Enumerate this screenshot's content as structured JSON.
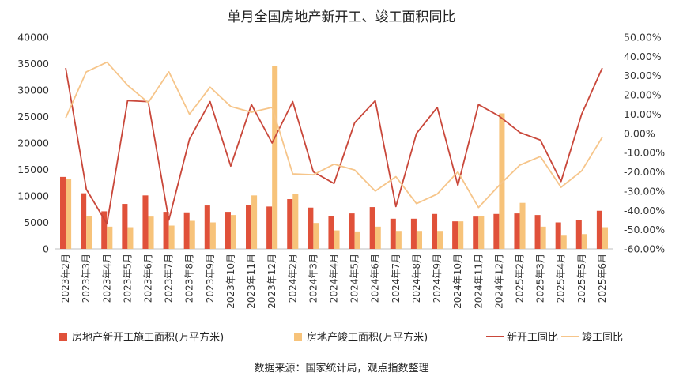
{
  "chart_data": {
    "type": "bar+line",
    "title": "单月全国房地产新开工、竣工面积同比",
    "categories": [
      "2023年2月",
      "2023年3月",
      "2023年4月",
      "2023年5月",
      "2023年6月",
      "2023年7月",
      "2023年8月",
      "2023年9月",
      "2023年10月",
      "2023年11月",
      "2023年12月",
      "2024年2月",
      "2024年3月",
      "2024年4月",
      "2024年5月",
      "2024年6月",
      "2024年7月",
      "2024年8月",
      "2024年9月",
      "2024年10月",
      "2024年11月",
      "2024年12月",
      "2025年2月",
      "2025年3月",
      "2025年4月",
      "2025年5月",
      "2025年6月"
    ],
    "left_axis": {
      "ylim": [
        0,
        40000
      ],
      "ticks": [
        "0",
        "5000",
        "10000",
        "15000",
        "20000",
        "25000",
        "30000",
        "35000",
        "40000"
      ]
    },
    "right_axis": {
      "ylim": [
        -60,
        50
      ],
      "ticks": [
        "-60.00%",
        "-50.00%",
        "-40.00%",
        "-30.00%",
        "-20.00%",
        "-10.00%",
        "0.00%",
        "10.00%",
        "20.00%",
        "30.00%",
        "40.00%",
        "50.00%"
      ]
    },
    "series": [
      {
        "name": "房地产新开工施工面积(万平方米)",
        "type": "bar",
        "axis": "left",
        "color": "#e0513a",
        "values": [
          13600,
          10500,
          7100,
          8500,
          10100,
          7000,
          6900,
          8200,
          7000,
          8300,
          8000,
          9400,
          7800,
          6200,
          6700,
          7900,
          5700,
          5700,
          6600,
          5200,
          6100,
          6600,
          6700,
          6400,
          5000,
          5400,
          7200
        ]
      },
      {
        "name": "房地产竣工面积(万平方米)",
        "type": "bar",
        "axis": "left",
        "color": "#f7c37a",
        "values": [
          13200,
          6200,
          4200,
          4100,
          6100,
          4400,
          5300,
          5000,
          6400,
          10100,
          34600,
          10400,
          4900,
          3500,
          3300,
          4200,
          3400,
          3400,
          3400,
          5200,
          6200,
          25600,
          8700,
          4200,
          2500,
          2800,
          4100
        ]
      },
      {
        "name": "新开工同比",
        "type": "line",
        "axis": "right",
        "color": "#c9473a",
        "values": [
          34,
          -29,
          -47,
          17,
          16.5,
          -45,
          -3,
          16.5,
          -17,
          15,
          -5,
          16.5,
          -20,
          -26,
          5.5,
          17,
          -38,
          0,
          13.5,
          -27,
          15,
          9,
          0.5,
          -3.5,
          -25,
          10,
          34
        ]
      },
      {
        "name": "竣工同比",
        "type": "line",
        "axis": "right",
        "color": "#f6c58a",
        "values": [
          8,
          32,
          37,
          25,
          16,
          32,
          10,
          24,
          14,
          11,
          13.5,
          -21,
          -21.5,
          -16,
          -19,
          -30,
          -22.5,
          -36.5,
          -31.5,
          -20,
          -38.5,
          -27,
          -16.5,
          -12,
          -28,
          -19.5,
          -2
        ]
      }
    ],
    "legend_position": "bottom",
    "grid": false
  },
  "source_text": "数据来源：国家统计局，观点指数整理"
}
